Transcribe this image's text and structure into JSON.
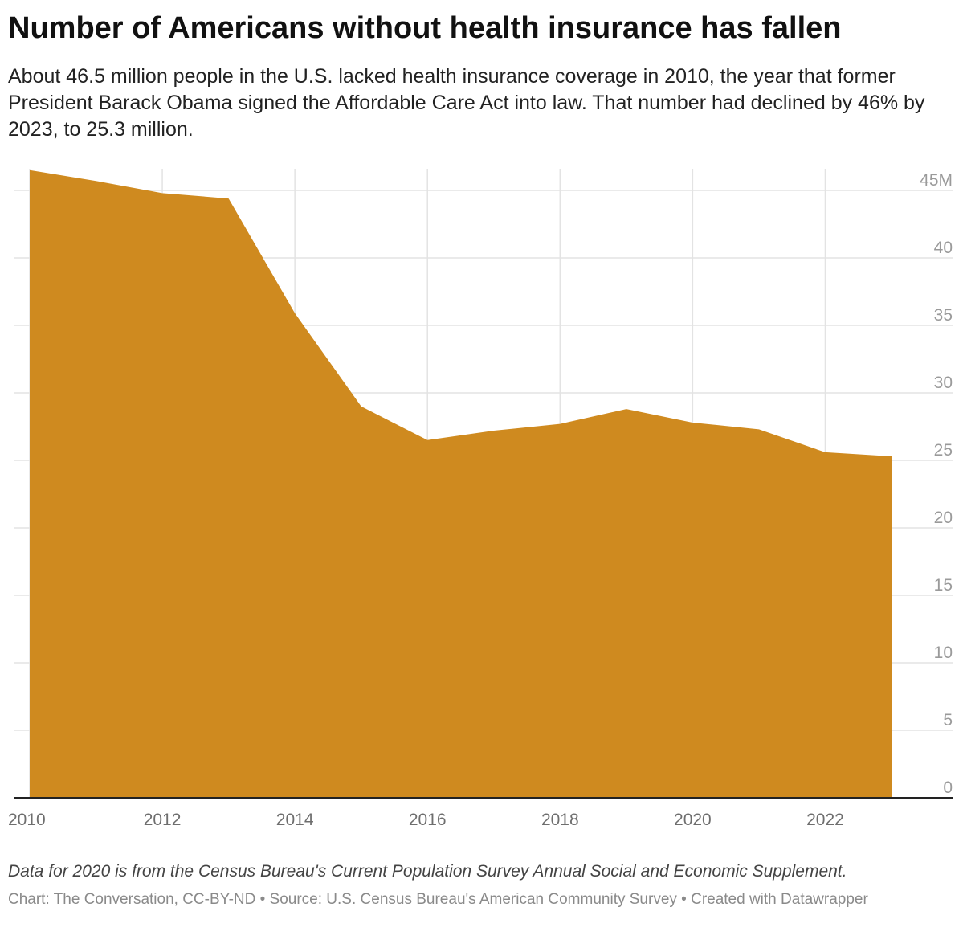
{
  "header": {
    "title": "Number of Americans without health insurance has fallen",
    "subtitle": "About 46.5 million people in the U.S. lacked health insurance coverage in 2010, the year that former President Barack Obama signed the Affordable Care Act into law. That number had declined by 46% by 2023, to 25.3 million."
  },
  "footer": {
    "notes": "Data for 2020 is from the Census Bureau's Current Population Survey Annual Social and Economic Supplement.",
    "credits": "Chart: The Conversation, CC-BY-ND • Source: U.S. Census Bureau's American Community Survey • Created with Datawrapper"
  },
  "colors": {
    "area": "#cf8a1f",
    "grid": "#e3e3e3",
    "baseline": "#222222"
  },
  "chart_data": {
    "type": "area",
    "x": [
      2010,
      2011,
      2012,
      2013,
      2014,
      2015,
      2016,
      2017,
      2018,
      2019,
      2020,
      2021,
      2022,
      2023
    ],
    "series": [
      {
        "values": [
          46.5,
          45.7,
          44.8,
          44.4,
          35.9,
          29.0,
          26.5,
          27.2,
          27.7,
          28.8,
          27.8,
          27.3,
          25.6,
          25.3
        ]
      }
    ],
    "xlim": [
      2010,
      2023
    ],
    "ylim": [
      0,
      46.5
    ],
    "x_ticks": [
      "2010",
      "2012",
      "2014",
      "2016",
      "2018",
      "2020",
      "2022"
    ],
    "y_ticks": [
      {
        "value": 0,
        "label": "0"
      },
      {
        "value": 5,
        "label": "5"
      },
      {
        "value": 10,
        "label": "10"
      },
      {
        "value": 15,
        "label": "15"
      },
      {
        "value": 20,
        "label": "20"
      },
      {
        "value": 25,
        "label": "25"
      },
      {
        "value": 30,
        "label": "30"
      },
      {
        "value": 35,
        "label": "35"
      },
      {
        "value": 40,
        "label": "40"
      },
      {
        "value": 45,
        "label": "45M"
      }
    ],
    "y_axis_position": "right",
    "grid": true
  }
}
